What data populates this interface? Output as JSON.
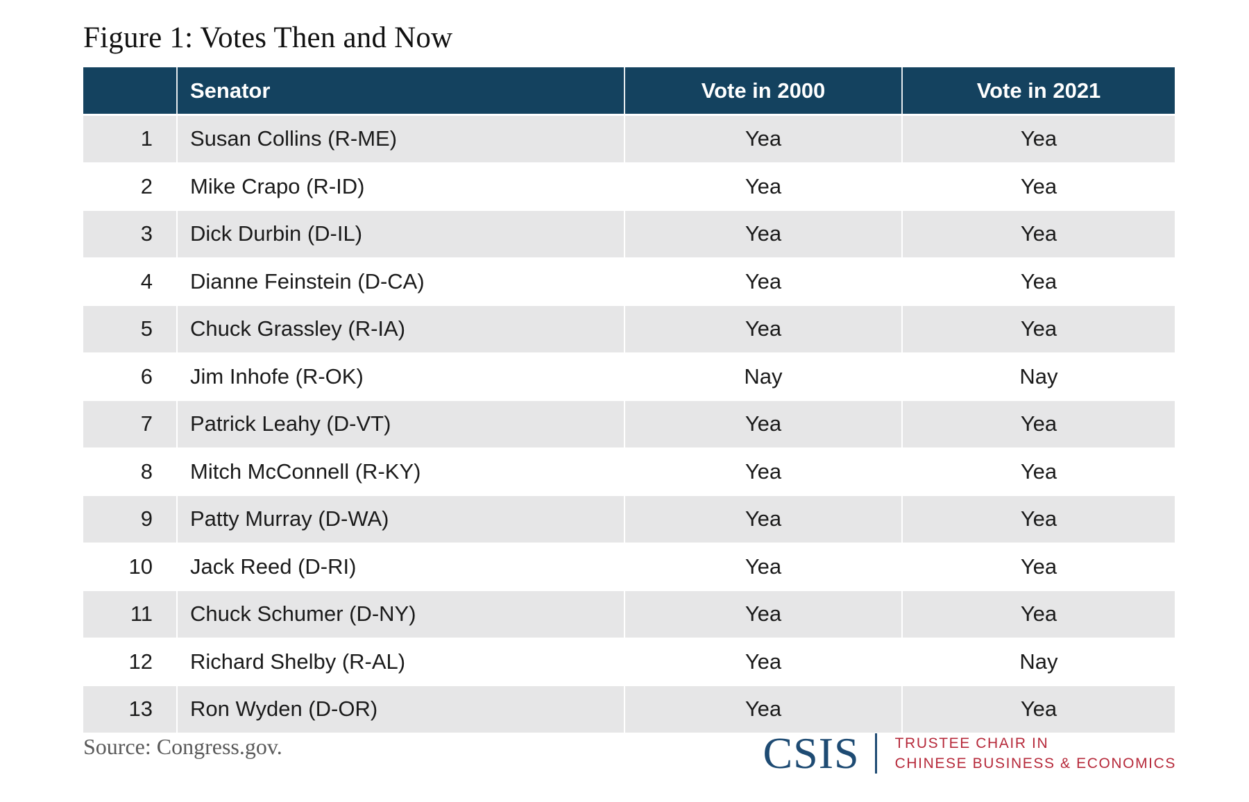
{
  "colors": {
    "header_bg": "#14425f",
    "row_alt_bg": "#e6e6e7",
    "text": "#1a1a1a",
    "source_text": "#5a5a5a",
    "logo_blue": "#1e4b73",
    "logo_red": "#b6293a"
  },
  "chart_data": {
    "type": "table",
    "title": "Figure 1: Votes Then and Now",
    "columns": {
      "num": "",
      "senator": "Senator",
      "vote_2000": "Vote in 2000",
      "vote_2021": "Vote in 2021"
    },
    "rows": [
      {
        "num": "1",
        "senator": "Susan Collins (R-ME)",
        "vote_2000": "Yea",
        "vote_2021": "Yea"
      },
      {
        "num": "2",
        "senator": "Mike Crapo (R-ID)",
        "vote_2000": "Yea",
        "vote_2021": "Yea"
      },
      {
        "num": "3",
        "senator": "Dick Durbin (D-IL)",
        "vote_2000": "Yea",
        "vote_2021": "Yea"
      },
      {
        "num": "4",
        "senator": "Dianne Feinstein (D-CA)",
        "vote_2000": "Yea",
        "vote_2021": "Yea"
      },
      {
        "num": "5",
        "senator": "Chuck Grassley (R-IA)",
        "vote_2000": "Yea",
        "vote_2021": "Yea"
      },
      {
        "num": "6",
        "senator": "Jim Inhofe (R-OK)",
        "vote_2000": "Nay",
        "vote_2021": "Nay"
      },
      {
        "num": "7",
        "senator": "Patrick Leahy (D-VT)",
        "vote_2000": "Yea",
        "vote_2021": "Yea"
      },
      {
        "num": "8",
        "senator": "Mitch McConnell (R-KY)",
        "vote_2000": "Yea",
        "vote_2021": "Yea"
      },
      {
        "num": "9",
        "senator": "Patty Murray (D-WA)",
        "vote_2000": "Yea",
        "vote_2021": "Yea"
      },
      {
        "num": "10",
        "senator": "Jack Reed (D-RI)",
        "vote_2000": "Yea",
        "vote_2021": "Yea"
      },
      {
        "num": "11",
        "senator": "Chuck Schumer (D-NY)",
        "vote_2000": "Yea",
        "vote_2021": "Yea"
      },
      {
        "num": "12",
        "senator": "Richard Shelby (R-AL)",
        "vote_2000": "Yea",
        "vote_2021": "Nay"
      },
      {
        "num": "13",
        "senator": "Ron Wyden (D-OR)",
        "vote_2000": "Yea",
        "vote_2021": "Yea"
      }
    ]
  },
  "footer": {
    "source": "Source: Congress.gov.",
    "logo": {
      "wordmark": "CSIS",
      "program_line1": "TRUSTEE CHAIR IN",
      "program_line2": "CHINESE BUSINESS & ECONOMICS"
    }
  }
}
